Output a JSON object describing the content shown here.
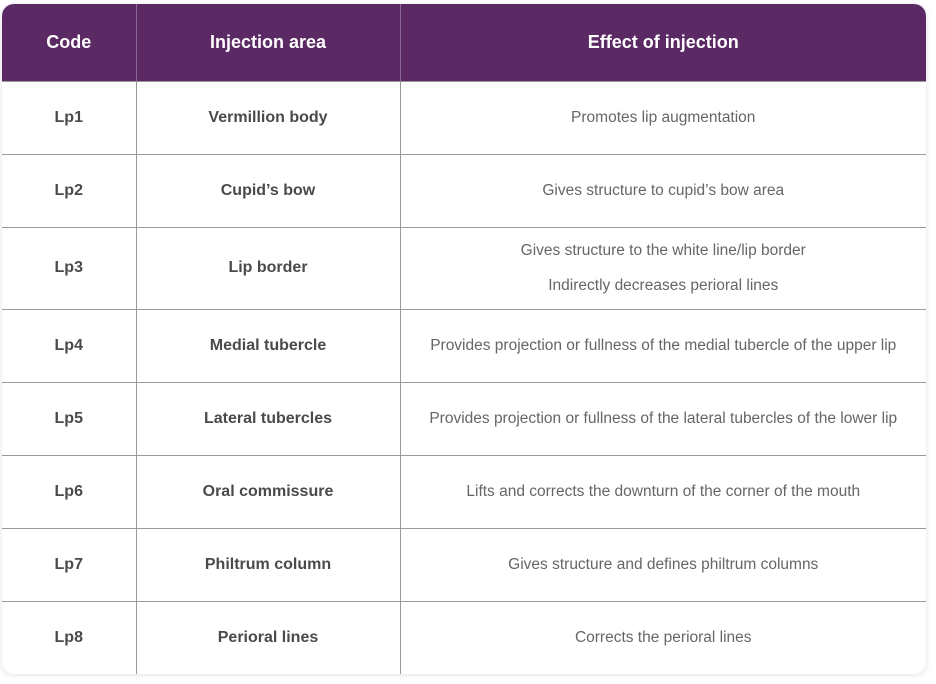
{
  "header": {
    "code": "Code",
    "area": "Injection area",
    "effect": "Effect of injection"
  },
  "rows": [
    {
      "code": "Lp1",
      "area": "Vermillion body",
      "effects": [
        "Promotes lip augmentation"
      ]
    },
    {
      "code": "Lp2",
      "area": "Cupid’s bow",
      "effects": [
        "Gives structure to cupid’s bow area"
      ]
    },
    {
      "code": "Lp3",
      "area": "Lip border",
      "effects": [
        "Gives structure to the white line/lip border",
        "Indirectly decreases perioral lines"
      ]
    },
    {
      "code": "Lp4",
      "area": "Medial tubercle",
      "effects": [
        "Provides projection or fullness of the medial tubercle of the upper lip"
      ]
    },
    {
      "code": "Lp5",
      "area": "Lateral tubercles",
      "effects": [
        "Provides projection or fullness of the lateral tubercles of the lower lip"
      ]
    },
    {
      "code": "Lp6",
      "area": "Oral commissure",
      "effects": [
        "Lifts and corrects the downturn of the corner of the mouth"
      ]
    },
    {
      "code": "Lp7",
      "area": "Philtrum column",
      "effects": [
        "Gives structure and defines philtrum columns"
      ]
    },
    {
      "code": "Lp8",
      "area": "Perioral lines",
      "effects": [
        "Corrects the perioral lines"
      ]
    }
  ],
  "colors": {
    "header_bg": "#5b2a64",
    "header_text": "#ffffff",
    "grid": "#9a9a9a"
  }
}
